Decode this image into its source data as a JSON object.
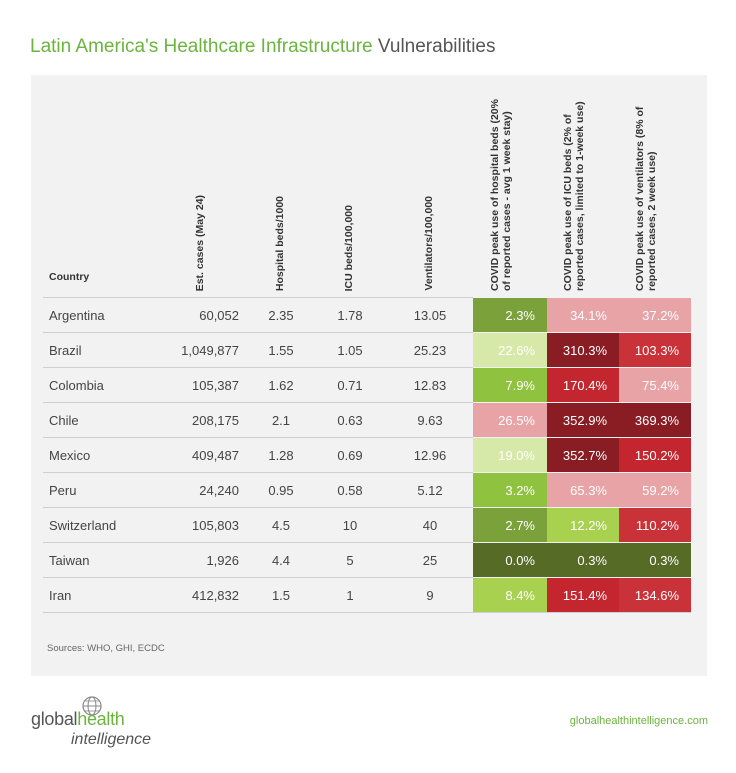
{
  "header": {
    "title_green": "Latin America's Healthcare Infrastructure",
    "title_dark": " Vulnerabilities"
  },
  "table": {
    "columns": [
      "Country",
      "Est. cases (May 24)",
      "Hospital beds/1000",
      "ICU beds/100,000",
      "Ventilators/100,000",
      "COVID peak use of hospital beds (20% of reported cases - avg 1 week stay)",
      "COVID peak use of ICU beds (2% of reported cases, limited to 1-week use)",
      "COVID peak use of ventilators (8% of reported cases, 2 week use)"
    ],
    "rows": [
      [
        "Argentina",
        "60,052",
        "2.35",
        "1.78",
        "13.05",
        "2.3%",
        "34.1%",
        "37.2%"
      ],
      [
        "Brazil",
        "1,049,877",
        "1.55",
        "1.05",
        "25.23",
        "22.6%",
        "310.3%",
        "103.3%"
      ],
      [
        "Colombia",
        "105,387",
        "1.62",
        "0.71",
        "12.83",
        "7.9%",
        "170.4%",
        "75.4%"
      ],
      [
        "Chile",
        "208,175",
        "2.1",
        "0.63",
        "9.63",
        "26.5%",
        "352.9%",
        "369.3%"
      ],
      [
        "Mexico",
        "409,487",
        "1.28",
        "0.69",
        "12.96",
        "19.0%",
        "352.7%",
        "150.2%"
      ],
      [
        "Peru",
        "24,240",
        "0.95",
        "0.58",
        "5.12",
        "3.2%",
        "65.3%",
        "59.2%"
      ],
      [
        "Switzerland",
        "105,803",
        "4.5",
        "10",
        "40",
        "2.7%",
        "12.2%",
        "110.2%"
      ],
      [
        "Taiwan",
        "1,926",
        "4.4",
        "5",
        "25",
        "0.0%",
        "0.3%",
        "0.3%"
      ],
      [
        "Iran",
        "412,832",
        "1.5",
        "1",
        "9",
        "8.4%",
        "151.4%",
        "134.6%"
      ]
    ],
    "heat_colors": [
      [
        "#7ba23a",
        "#e8a3a7",
        "#e8a3a7"
      ],
      [
        "#d6e9a8",
        "#8a1c23",
        "#c93238"
      ],
      [
        "#8fc23f",
        "#c3262e",
        "#e8a3a7"
      ],
      [
        "#e8a3a7",
        "#8a1c23",
        "#8a1c23"
      ],
      [
        "#d6e9a8",
        "#8a1c23",
        "#c3262e"
      ],
      [
        "#8fc23f",
        "#e8a3a7",
        "#e8a3a7"
      ],
      [
        "#7ba23a",
        "#a8d150",
        "#c93238"
      ],
      [
        "#556b26",
        "#556b26",
        "#556b26"
      ],
      [
        "#a8d150",
        "#c3262e",
        "#c93238"
      ]
    ]
  },
  "footer": {
    "sources": "Sources: WHO, GHI, ECDC",
    "logo_part1": "global",
    "logo_part2": "health",
    "logo_part3": "intelligence",
    "website": "globalhealthintelligence.com"
  },
  "chart_data": {
    "type": "table",
    "title": "Latin America's Healthcare Infrastructure Vulnerabilities",
    "columns": [
      "Country",
      "Est. cases (May 24)",
      "Hospital beds/1000",
      "ICU beds/100,000",
      "Ventilators/100,000",
      "COVID peak use of hospital beds (20% of reported cases - avg 1 week stay)",
      "COVID peak use of ICU beds (2% of reported cases, limited to 1-week use)",
      "COVID peak use of ventilators (8% of reported cases, 2 week use)"
    ],
    "rows": [
      [
        "Argentina",
        60052,
        2.35,
        1.78,
        13.05,
        2.3,
        34.1,
        37.2
      ],
      [
        "Brazil",
        1049877,
        1.55,
        1.05,
        25.23,
        22.6,
        310.3,
        103.3
      ],
      [
        "Colombia",
        105387,
        1.62,
        0.71,
        12.83,
        7.9,
        170.4,
        75.4
      ],
      [
        "Chile",
        208175,
        2.1,
        0.63,
        9.63,
        26.5,
        352.9,
        369.3
      ],
      [
        "Mexico",
        409487,
        1.28,
        0.69,
        12.96,
        19.0,
        352.7,
        150.2
      ],
      [
        "Peru",
        24240,
        0.95,
        0.58,
        5.12,
        3.2,
        65.3,
        59.2
      ],
      [
        "Switzerland",
        105803,
        4.5,
        10,
        40,
        2.7,
        12.2,
        110.2
      ],
      [
        "Taiwan",
        1926,
        4.4,
        5,
        25,
        0.0,
        0.3,
        0.3
      ],
      [
        "Iran",
        412832,
        1.5,
        1,
        9,
        8.4,
        151.4,
        134.6
      ]
    ]
  }
}
